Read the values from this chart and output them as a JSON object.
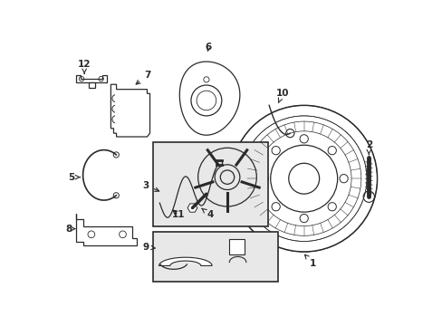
{
  "bg_color": "#ffffff",
  "line_color": "#2a2a2a",
  "box_fill": "#e8e8e8",
  "fig_width": 4.89,
  "fig_height": 3.6,
  "dpi": 100,
  "label_fontsize": 7.5,
  "label_fontweight": "bold"
}
